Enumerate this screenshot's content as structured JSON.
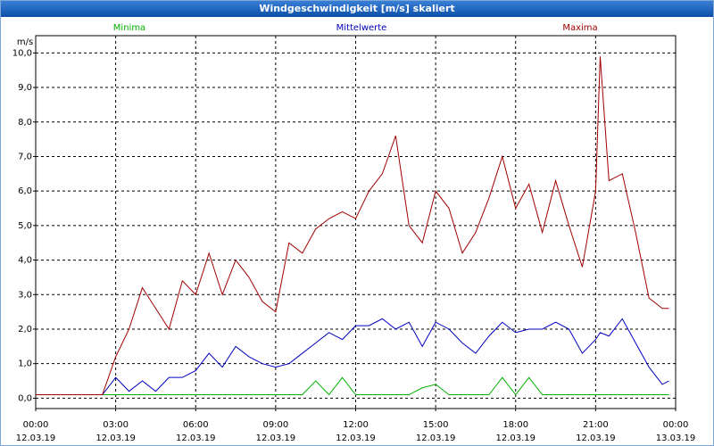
{
  "chart_data": {
    "type": "line",
    "title": "Windgeschwindigkeit [m/s] skaliert",
    "y_unit": "m/s",
    "x": [
      0,
      2.5,
      3,
      3.5,
      4,
      4.5,
      5,
      5.5,
      6,
      6.5,
      7,
      7.5,
      8,
      8.5,
      9,
      9.5,
      10,
      10.5,
      11,
      11.5,
      12,
      12.5,
      13,
      13.5,
      14,
      14.5,
      15,
      15.5,
      16,
      16.5,
      17,
      17.5,
      18,
      18.5,
      19,
      19.5,
      20,
      20.5,
      21,
      21.17,
      21.5,
      22,
      22.5,
      23,
      23.5,
      23.75
    ],
    "series": [
      {
        "name": "Minima",
        "color": "#00b000",
        "values": [
          0.1,
          0.1,
          0.1,
          0.1,
          0.1,
          0.1,
          0.1,
          0.1,
          0.1,
          0.1,
          0.1,
          0.1,
          0.1,
          0.1,
          0.1,
          0.1,
          0.1,
          0.5,
          0.1,
          0.6,
          0.1,
          0.1,
          0.1,
          0.1,
          0.1,
          0.3,
          0.4,
          0.1,
          0.1,
          0.1,
          0.1,
          0.6,
          0.1,
          0.6,
          0.1,
          0.1,
          0.1,
          0.1,
          0.1,
          0.1,
          0.1,
          0.1,
          0.1,
          0.1,
          0.1,
          0.1
        ]
      },
      {
        "name": "Mittelwerte",
        "color": "#0000c0",
        "values": [
          0.1,
          0.1,
          0.6,
          0.2,
          0.5,
          0.2,
          0.6,
          0.6,
          0.8,
          1.3,
          0.9,
          1.5,
          1.2,
          1.0,
          0.9,
          1.0,
          1.3,
          1.6,
          1.9,
          1.7,
          2.1,
          2.1,
          2.3,
          2.0,
          2.2,
          1.5,
          2.2,
          2.0,
          1.6,
          1.3,
          1.8,
          2.2,
          1.9,
          2.0,
          2.0,
          2.2,
          2.0,
          1.3,
          1.7,
          1.9,
          1.8,
          2.3,
          1.6,
          0.9,
          0.4,
          0.5
        ]
      },
      {
        "name": "Maxima",
        "color": "#a00000",
        "values": [
          0.1,
          0.1,
          1.2,
          2.0,
          3.2,
          2.6,
          2.0,
          3.4,
          3.0,
          4.2,
          3.0,
          4.0,
          3.5,
          2.8,
          2.5,
          4.5,
          4.2,
          4.9,
          5.2,
          5.4,
          5.2,
          6.0,
          6.5,
          7.6,
          5.0,
          4.5,
          6.0,
          5.5,
          4.2,
          4.8,
          5.8,
          7.0,
          5.5,
          6.2,
          4.8,
          6.3,
          5.0,
          3.8,
          6.0,
          9.9,
          6.3,
          6.5,
          4.8,
          2.9,
          2.6,
          2.6
        ]
      }
    ],
    "xlim": [
      0,
      24
    ],
    "xticks": [
      {
        "value": 0,
        "label": "00:00"
      },
      {
        "value": 3,
        "label": "03:00"
      },
      {
        "value": 6,
        "label": "06:00"
      },
      {
        "value": 9,
        "label": "09:00"
      },
      {
        "value": 12,
        "label": "12:00"
      },
      {
        "value": 15,
        "label": "15:00"
      },
      {
        "value": 18,
        "label": "18:00"
      },
      {
        "value": 21,
        "label": "21:00"
      },
      {
        "value": 24,
        "label": "00:00"
      }
    ],
    "xtick_dates": [
      "12.03.19",
      "12.03.19",
      "12.03.19",
      "12.03.19",
      "12.03.19",
      "12.03.19",
      "12.03.19",
      "12.03.19",
      "13.03.19"
    ],
    "ylim": [
      -0.3,
      10.5
    ],
    "yticks": [
      {
        "value": 0,
        "label": "0,0"
      },
      {
        "value": 1,
        "label": "1,0"
      },
      {
        "value": 2,
        "label": "2,0"
      },
      {
        "value": 3,
        "label": "3,0"
      },
      {
        "value": 4,
        "label": "4,0"
      },
      {
        "value": 5,
        "label": "5,0"
      },
      {
        "value": 6,
        "label": "6,0"
      },
      {
        "value": 7,
        "label": "7,0"
      },
      {
        "value": 8,
        "label": "8,0"
      },
      {
        "value": 9,
        "label": "9,0"
      },
      {
        "value": 10,
        "label": "10,0"
      }
    ],
    "grid": true
  }
}
